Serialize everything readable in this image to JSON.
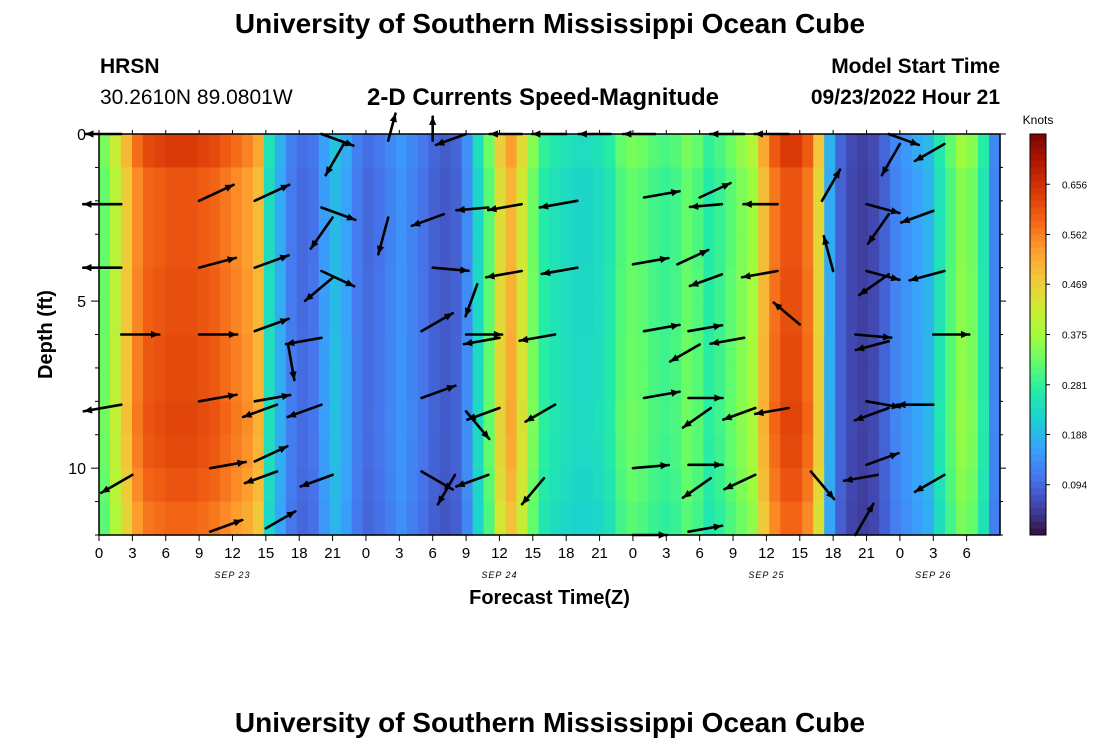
{
  "header": {
    "title": "University of Southern Mississippi Ocean Cube",
    "station": "HRSN",
    "coords": "30.2610N  89.0801W",
    "subtitle": "2-D Currents Speed-Magnitude",
    "model_start_label": "Model Start Time",
    "model_start_value": "09/23/2022 Hour 21"
  },
  "footer": {
    "title": "University of Southern Mississippi Ocean Cube"
  },
  "chart_data": {
    "type": "heatmap",
    "title": "2-D Currents Speed-Magnitude",
    "xlabel": "Forecast Time(Z)",
    "ylabel": "Depth (ft)",
    "colorbar_label": "Knots",
    "colorbar_ticks": [
      0.656,
      0.562,
      0.469,
      0.375,
      0.281,
      0.188,
      0.094
    ],
    "colorbar_range": [
      0.0,
      0.75
    ],
    "colormap": [
      "#30123b",
      "#4145ab",
      "#4675ed",
      "#39a2fc",
      "#1bcfd4",
      "#24eca6",
      "#61fc6c",
      "#a4fc3b",
      "#d1e834",
      "#f3c63a",
      "#fe9b2d",
      "#f36315",
      "#d93806",
      "#b11901",
      "#7a0402"
    ],
    "xlim": [
      0,
      81
    ],
    "ylim": [
      0,
      12
    ],
    "x_tick_labels": [
      "0",
      "3",
      "6",
      "9",
      "12",
      "15",
      "18",
      "21",
      "0",
      "3",
      "6",
      "9",
      "12",
      "15",
      "18",
      "21",
      "0",
      "3",
      "6",
      "9",
      "12",
      "15",
      "18",
      "21",
      "0",
      "3",
      "6"
    ],
    "y_ticks": [
      0,
      5,
      10
    ],
    "date_labels": [
      {
        "text": "SEP 23",
        "x": 12
      },
      {
        "text": "SEP 24",
        "x": 36
      },
      {
        "text": "SEP 25",
        "x": 60
      },
      {
        "text": "SEP 26",
        "x": 75
      }
    ],
    "column_speeds": [
      0.34,
      0.42,
      0.5,
      0.58,
      0.62,
      0.63,
      0.64,
      0.64,
      0.64,
      0.63,
      0.62,
      0.6,
      0.58,
      0.56,
      0.52,
      0.25,
      0.18,
      0.12,
      0.1,
      0.11,
      0.16,
      0.2,
      0.17,
      0.12,
      0.1,
      0.11,
      0.13,
      0.15,
      0.13,
      0.11,
      0.09,
      0.08,
      0.09,
      0.14,
      0.24,
      0.33,
      0.47,
      0.53,
      0.45,
      0.35,
      0.28,
      0.26,
      0.25,
      0.24,
      0.24,
      0.25,
      0.27,
      0.32,
      0.34,
      0.33,
      0.31,
      0.3,
      0.31,
      0.34,
      0.32,
      0.28,
      0.3,
      0.33,
      0.36,
      0.39,
      0.52,
      0.6,
      0.64,
      0.64,
      0.6,
      0.48,
      0.18,
      0.09,
      0.06,
      0.05,
      0.06,
      0.09,
      0.13,
      0.15,
      0.17,
      0.19,
      0.26,
      0.32,
      0.37,
      0.35,
      0.27,
      0.13
    ],
    "depth_profile": [
      1.0,
      0.95,
      0.95,
      0.95,
      0.96,
      0.96,
      0.97,
      0.97,
      0.98,
      0.97,
      0.95,
      0.92
    ],
    "vectors": [
      {
        "t": 2,
        "d": 0.0,
        "dir": 180,
        "spd": 0.4
      },
      {
        "t": 20,
        "d": 0.0,
        "dir": -20,
        "spd": 0.35
      },
      {
        "t": 22,
        "d": 0.3,
        "dir": 240,
        "spd": 0.4
      },
      {
        "t": 26,
        "d": 0.2,
        "dir": 75,
        "spd": 0.2
      },
      {
        "t": 30,
        "d": 0.2,
        "dir": 90,
        "spd": 0.1
      },
      {
        "t": 33,
        "d": 0.0,
        "dir": 200,
        "spd": 0.3
      },
      {
        "t": 38,
        "d": 0.0,
        "dir": 180,
        "spd": 0.3
      },
      {
        "t": 42,
        "d": 0.0,
        "dir": 180,
        "spd": 0.35
      },
      {
        "t": 46,
        "d": 0.0,
        "dir": 180,
        "spd": 0.3
      },
      {
        "t": 50,
        "d": 0.0,
        "dir": 180,
        "spd": 0.3
      },
      {
        "t": 58,
        "d": 0.0,
        "dir": 180,
        "spd": 0.35
      },
      {
        "t": 62,
        "d": 0.0,
        "dir": 180,
        "spd": 0.35
      },
      {
        "t": 71,
        "d": 0.0,
        "dir": -20,
        "spd": 0.3
      },
      {
        "t": 72,
        "d": 0.3,
        "dir": 240,
        "spd": 0.4
      },
      {
        "t": 76,
        "d": 0.3,
        "dir": 210,
        "spd": 0.35
      },
      {
        "t": 2,
        "d": 2.1,
        "dir": 180,
        "spd": 0.45
      },
      {
        "t": 9,
        "d": 2.0,
        "dir": 25,
        "spd": 0.45
      },
      {
        "t": 14,
        "d": 2.0,
        "dir": 25,
        "spd": 0.45
      },
      {
        "t": 20,
        "d": 2.2,
        "dir": -20,
        "spd": 0.4
      },
      {
        "t": 21,
        "d": 2.5,
        "dir": 235,
        "spd": 0.45
      },
      {
        "t": 26,
        "d": 2.5,
        "dir": 255,
        "spd": 0.45
      },
      {
        "t": 31,
        "d": 2.4,
        "dir": 200,
        "spd": 0.35
      },
      {
        "t": 35,
        "d": 2.2,
        "dir": 185,
        "spd": 0.3
      },
      {
        "t": 38,
        "d": 2.1,
        "dir": 190,
        "spd": 0.35
      },
      {
        "t": 43,
        "d": 2.0,
        "dir": 190,
        "spd": 0.45
      },
      {
        "t": 49,
        "d": 1.9,
        "dir": 10,
        "spd": 0.4
      },
      {
        "t": 54,
        "d": 1.9,
        "dir": 25,
        "spd": 0.35
      },
      {
        "t": 56,
        "d": 2.1,
        "dir": 185,
        "spd": 0.3
      },
      {
        "t": 61,
        "d": 2.1,
        "dir": 180,
        "spd": 0.35
      },
      {
        "t": 65,
        "d": 2.0,
        "dir": 60,
        "spd": 0.4
      },
      {
        "t": 69,
        "d": 2.1,
        "dir": -15,
        "spd": 0.35
      },
      {
        "t": 71,
        "d": 2.4,
        "dir": 235,
        "spd": 0.4
      },
      {
        "t": 75,
        "d": 2.3,
        "dir": 200,
        "spd": 0.35
      },
      {
        "t": 2,
        "d": 4.0,
        "dir": 180,
        "spd": 0.45
      },
      {
        "t": 9,
        "d": 4.0,
        "dir": 15,
        "spd": 0.45
      },
      {
        "t": 14,
        "d": 4.0,
        "dir": 20,
        "spd": 0.4
      },
      {
        "t": 20,
        "d": 4.1,
        "dir": -25,
        "spd": 0.4
      },
      {
        "t": 21,
        "d": 4.3,
        "dir": 220,
        "spd": 0.4
      },
      {
        "t": 30,
        "d": 4.0,
        "dir": -5,
        "spd": 0.4
      },
      {
        "t": 34,
        "d": 4.5,
        "dir": 250,
        "spd": 0.35
      },
      {
        "t": 38,
        "d": 4.1,
        "dir": 190,
        "spd": 0.4
      },
      {
        "t": 43,
        "d": 4.0,
        "dir": 190,
        "spd": 0.4
      },
      {
        "t": 48,
        "d": 3.9,
        "dir": 10,
        "spd": 0.4
      },
      {
        "t": 52,
        "d": 3.9,
        "dir": 25,
        "spd": 0.35
      },
      {
        "t": 56,
        "d": 4.2,
        "dir": 200,
        "spd": 0.35
      },
      {
        "t": 61,
        "d": 4.1,
        "dir": 190,
        "spd": 0.4
      },
      {
        "t": 66,
        "d": 4.1,
        "dir": 105,
        "spd": 0.4
      },
      {
        "t": 69,
        "d": 4.1,
        "dir": -15,
        "spd": 0.35
      },
      {
        "t": 71,
        "d": 4.2,
        "dir": 215,
        "spd": 0.4
      },
      {
        "t": 76,
        "d": 4.1,
        "dir": 195,
        "spd": 0.4
      },
      {
        "t": 2,
        "d": 6.0,
        "dir": 0,
        "spd": 0.45
      },
      {
        "t": 9,
        "d": 6.0,
        "dir": 0,
        "spd": 0.45
      },
      {
        "t": 14,
        "d": 5.9,
        "dir": 20,
        "spd": 0.4
      },
      {
        "t": 17,
        "d": 6.3,
        "dir": 280,
        "spd": 0.4
      },
      {
        "t": 20,
        "d": 6.1,
        "dir": 190,
        "spd": 0.4
      },
      {
        "t": 29,
        "d": 5.9,
        "dir": 30,
        "spd": 0.4
      },
      {
        "t": 33,
        "d": 6.0,
        "dir": 0,
        "spd": 0.4
      },
      {
        "t": 36,
        "d": 6.1,
        "dir": 190,
        "spd": 0.4
      },
      {
        "t": 41,
        "d": 6.0,
        "dir": 190,
        "spd": 0.4
      },
      {
        "t": 49,
        "d": 5.9,
        "dir": 10,
        "spd": 0.4
      },
      {
        "t": 53,
        "d": 5.9,
        "dir": 10,
        "spd": 0.35
      },
      {
        "t": 54,
        "d": 6.3,
        "dir": 210,
        "spd": 0.35
      },
      {
        "t": 58,
        "d": 6.1,
        "dir": 190,
        "spd": 0.35
      },
      {
        "t": 63,
        "d": 5.7,
        "dir": 140,
        "spd": 0.35
      },
      {
        "t": 68,
        "d": 6.0,
        "dir": -5,
        "spd": 0.4
      },
      {
        "t": 71,
        "d": 6.2,
        "dir": 195,
        "spd": 0.35
      },
      {
        "t": 75,
        "d": 6.0,
        "dir": 0,
        "spd": 0.4
      },
      {
        "t": 2,
        "d": 8.1,
        "dir": 190,
        "spd": 0.45
      },
      {
        "t": 9,
        "d": 8.0,
        "dir": 10,
        "spd": 0.45
      },
      {
        "t": 14,
        "d": 8.0,
        "dir": 10,
        "spd": 0.4
      },
      {
        "t": 16,
        "d": 8.1,
        "dir": 200,
        "spd": 0.4
      },
      {
        "t": 20,
        "d": 8.1,
        "dir": 200,
        "spd": 0.4
      },
      {
        "t": 29,
        "d": 7.9,
        "dir": 20,
        "spd": 0.4
      },
      {
        "t": 33,
        "d": 8.3,
        "dir": -50,
        "spd": 0.4
      },
      {
        "t": 36,
        "d": 8.2,
        "dir": 200,
        "spd": 0.35
      },
      {
        "t": 41,
        "d": 8.1,
        "dir": 210,
        "spd": 0.35
      },
      {
        "t": 49,
        "d": 7.9,
        "dir": 10,
        "spd": 0.4
      },
      {
        "t": 53,
        "d": 7.9,
        "dir": 0,
        "spd": 0.35
      },
      {
        "t": 55,
        "d": 8.2,
        "dir": 215,
        "spd": 0.35
      },
      {
        "t": 59,
        "d": 8.2,
        "dir": 200,
        "spd": 0.35
      },
      {
        "t": 62,
        "d": 8.2,
        "dir": 190,
        "spd": 0.35
      },
      {
        "t": 69,
        "d": 8.0,
        "dir": -10,
        "spd": 0.35
      },
      {
        "t": 71,
        "d": 8.2,
        "dir": 200,
        "spd": 0.4
      },
      {
        "t": 75,
        "d": 8.1,
        "dir": 180,
        "spd": 0.4
      },
      {
        "t": 3,
        "d": 10.2,
        "dir": 210,
        "spd": 0.4
      },
      {
        "t": 10,
        "d": 10.0,
        "dir": 10,
        "spd": 0.4
      },
      {
        "t": 14,
        "d": 9.8,
        "dir": 25,
        "spd": 0.4
      },
      {
        "t": 16,
        "d": 10.1,
        "dir": 200,
        "spd": 0.35
      },
      {
        "t": 21,
        "d": 10.2,
        "dir": 200,
        "spd": 0.35
      },
      {
        "t": 29,
        "d": 10.1,
        "dir": -30,
        "spd": 0.4
      },
      {
        "t": 32,
        "d": 10.2,
        "dir": 240,
        "spd": 0.35
      },
      {
        "t": 35,
        "d": 10.2,
        "dir": 200,
        "spd": 0.35
      },
      {
        "t": 40,
        "d": 10.3,
        "dir": 230,
        "spd": 0.35
      },
      {
        "t": 48,
        "d": 10.0,
        "dir": 5,
        "spd": 0.4
      },
      {
        "t": 53,
        "d": 9.9,
        "dir": 0,
        "spd": 0.35
      },
      {
        "t": 55,
        "d": 10.3,
        "dir": 215,
        "spd": 0.35
      },
      {
        "t": 59,
        "d": 10.2,
        "dir": 205,
        "spd": 0.35
      },
      {
        "t": 64,
        "d": 10.1,
        "dir": -50,
        "spd": 0.4
      },
      {
        "t": 69,
        "d": 9.9,
        "dir": 20,
        "spd": 0.35
      },
      {
        "t": 70,
        "d": 10.2,
        "dir": 190,
        "spd": 0.35
      },
      {
        "t": 76,
        "d": 10.2,
        "dir": 210,
        "spd": 0.35
      },
      {
        "t": 10,
        "d": 11.9,
        "dir": 20,
        "spd": 0.35
      },
      {
        "t": 15,
        "d": 11.8,
        "dir": 30,
        "spd": 0.35
      },
      {
        "t": 48,
        "d": 12.0,
        "dir": 0,
        "spd": 0.35
      },
      {
        "t": 53,
        "d": 11.9,
        "dir": 10,
        "spd": 0.35
      },
      {
        "t": 68,
        "d": 12.0,
        "dir": 60,
        "spd": 0.4
      }
    ]
  }
}
